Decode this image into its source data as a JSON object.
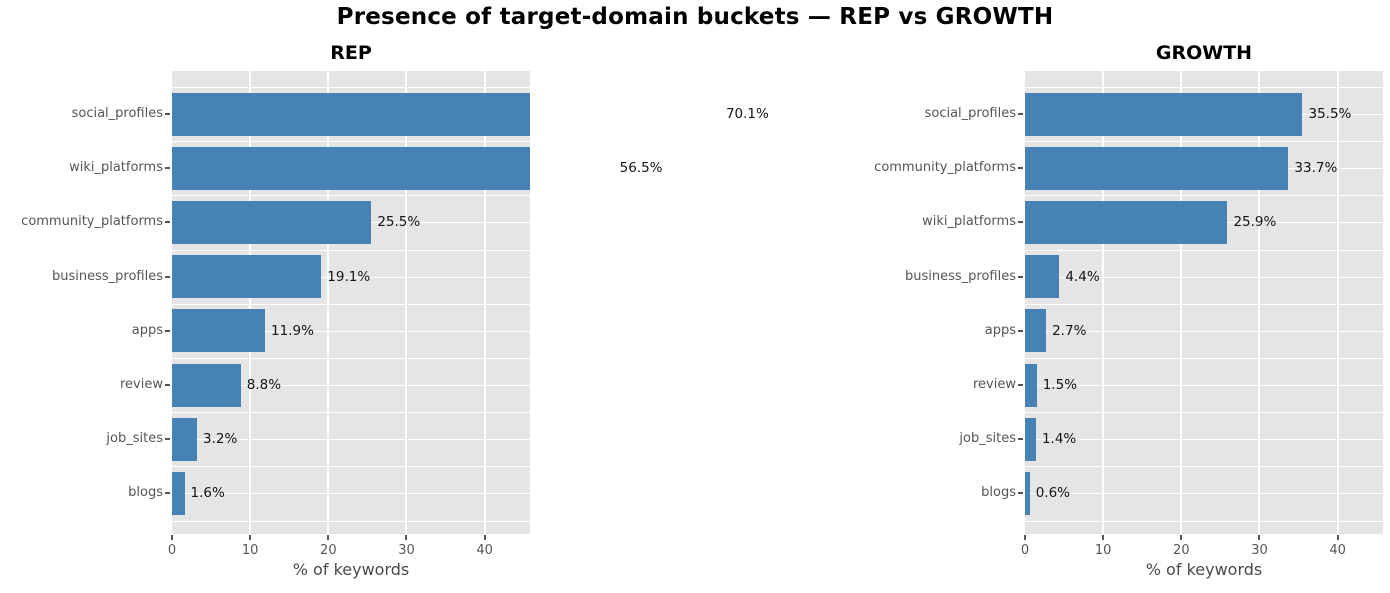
{
  "title": "Presence of target-domain buckets — REP vs GROWTH",
  "colors": {
    "bar": "#4682b4",
    "plot_background": "#e5e5e5",
    "grid": "#ffffff",
    "tick_text": "#555555",
    "category_text": "#555555",
    "value_text": "#141414",
    "axis_label_text": "#4a4a4a",
    "title_text": "#000000",
    "tick_mark": "#555555"
  },
  "chart_data": [
    {
      "type": "bar",
      "orientation": "horizontal",
      "title": "REP",
      "xlabel": "% of keywords",
      "xlim": [
        0,
        45.8
      ],
      "x_ticks": [
        0,
        10,
        20,
        30,
        40
      ],
      "grid": true,
      "categories": [
        "social_profiles",
        "wiki_platforms",
        "community_platforms",
        "business_profiles",
        "apps",
        "review",
        "job_sites",
        "blogs"
      ],
      "values": [
        70.1,
        56.5,
        25.5,
        19.1,
        11.9,
        8.8,
        3.2,
        1.6
      ],
      "value_labels": [
        "70.1%",
        "56.5%",
        "25.5%",
        "19.1%",
        "11.9%",
        "8.8%",
        "3.2%",
        "1.6%"
      ],
      "note": "bars for values above xlim are clipped at the axis edge; their value labels sit outside the axes"
    },
    {
      "type": "bar",
      "orientation": "horizontal",
      "title": "GROWTH",
      "xlabel": "% of keywords",
      "xlim": [
        0,
        45.8
      ],
      "x_ticks": [
        0,
        10,
        20,
        30,
        40
      ],
      "grid": true,
      "categories": [
        "social_profiles",
        "community_platforms",
        "wiki_platforms",
        "business_profiles",
        "apps",
        "review",
        "job_sites",
        "blogs"
      ],
      "values": [
        35.5,
        33.7,
        25.9,
        4.4,
        2.7,
        1.5,
        1.4,
        0.6
      ],
      "value_labels": [
        "35.5%",
        "33.7%",
        "25.9%",
        "4.4%",
        "2.7%",
        "1.5%",
        "1.4%",
        "0.6%"
      ],
      "note": ""
    }
  ]
}
